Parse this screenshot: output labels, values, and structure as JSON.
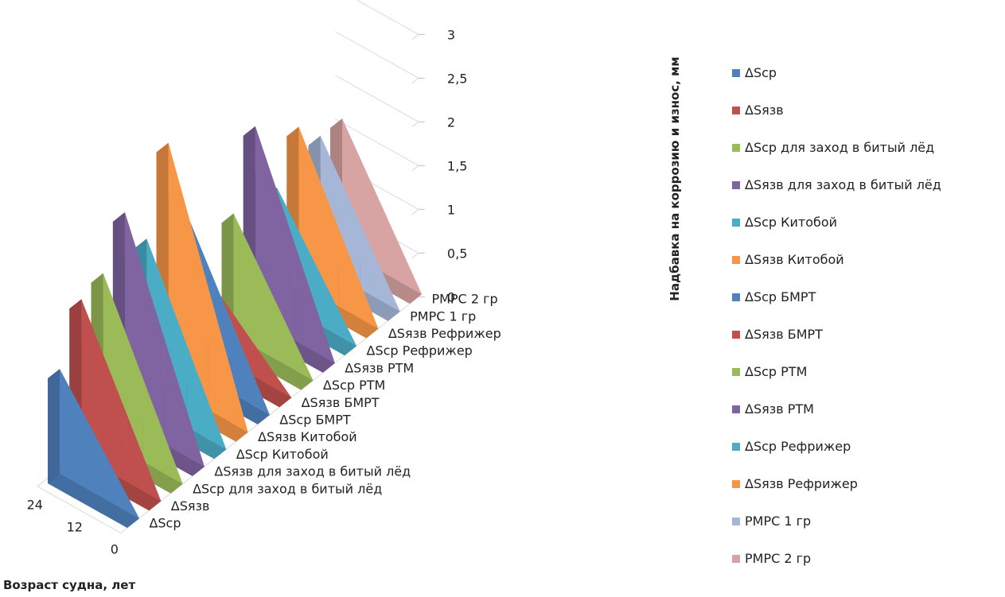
{
  "chart_data": {
    "type": "area",
    "three_d": true,
    "x_title": "Возраст судна, лет",
    "y_title": "Надбавка  на  коррозию и износ, мм",
    "x_ticks": [
      "0",
      "12",
      "24"
    ],
    "y_ticks": [
      "0",
      "0,5",
      "1",
      "1,5",
      "2",
      "2,5",
      "3"
    ],
    "ylim": [
      0,
      3
    ],
    "legend_position": "right",
    "series": [
      {
        "name": "ΔScp",
        "color": "#4f81bd",
        "values": [
          0,
          0.6,
          1.2
        ]
      },
      {
        "name": "ΔSязв",
        "color": "#c0504d",
        "values": [
          0,
          0.9,
          1.8
        ]
      },
      {
        "name": "ΔScp для заход в битый лёд",
        "color": "#9bbb59",
        "values": [
          0,
          0.95,
          1.9
        ]
      },
      {
        "name": "ΔSязв для заход в битый лёд",
        "color": "#8064a2",
        "values": [
          0,
          1.2,
          2.4
        ]
      },
      {
        "name": "ΔScp Китобой",
        "color": "#4bacc6",
        "values": [
          0,
          0.95,
          1.9
        ]
      },
      {
        "name": "ΔSязв Китобой",
        "color": "#f79646",
        "values": [
          0,
          1.4,
          2.8
        ]
      },
      {
        "name": "ΔScp БМРТ",
        "color": "#4f81bd",
        "values": [
          0,
          0.85,
          1.7
        ]
      },
      {
        "name": "ΔSязв БМРТ",
        "color": "#c0504d",
        "values": [
          0,
          0.4,
          0.8
        ]
      },
      {
        "name": "ΔScp РТМ",
        "color": "#9bbb59",
        "values": [
          0,
          0.7,
          1.4
        ]
      },
      {
        "name": "ΔSязв РТМ",
        "color": "#8064a2",
        "values": [
          0,
          1.1,
          2.2
        ]
      },
      {
        "name": "ΔScp Рефрижер",
        "color": "#4bacc6",
        "values": [
          0,
          0.65,
          1.3
        ]
      },
      {
        "name": "ΔSязв Рефрижер",
        "color": "#f79646",
        "values": [
          0,
          0.9,
          1.8
        ]
      },
      {
        "name": "РМРС 1 гр",
        "color": "#a5b6d7",
        "values": [
          0,
          0.75,
          1.5
        ]
      },
      {
        "name": "РМРС 2 гр",
        "color": "#d8a3a3",
        "values": [
          0,
          0.75,
          1.5
        ]
      }
    ]
  }
}
